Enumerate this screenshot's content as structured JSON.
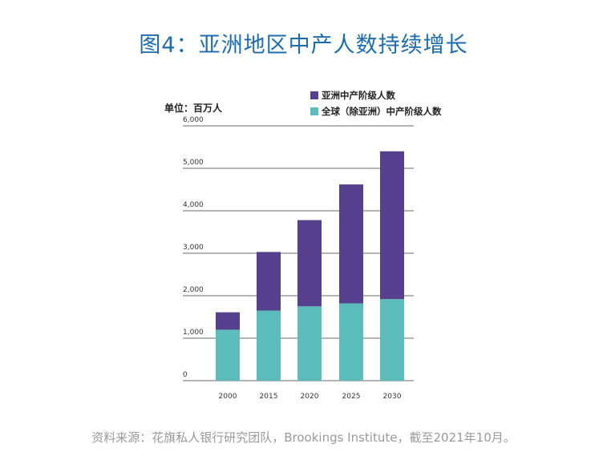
{
  "page": {
    "title": "图4：亚洲地区中产人数持续增长",
    "unit_label": "单位：百万人",
    "source": "资料来源：花旗私人银行研究团队，Brookings Institute，截至2021年10月。"
  },
  "chart_data": {
    "type": "bar",
    "stacked": true,
    "title": "图4：亚洲地区中产人数持续增长",
    "ylabel": "单位：百万人",
    "xlabel": "",
    "categories": [
      "2000",
      "2015",
      "2020",
      "2025",
      "2030"
    ],
    "series": [
      {
        "name": "全球（除亚洲）中产阶级人数",
        "values": [
          1200,
          1650,
          1750,
          1820,
          1920
        ],
        "color": "#5bbcbb"
      },
      {
        "name": "亚洲中产阶级人数",
        "values": [
          410,
          1380,
          2030,
          2800,
          3480
        ],
        "color": "#563f8d"
      }
    ],
    "ylim": [
      0,
      6000
    ],
    "yticks": [
      "0",
      "1,000",
      "2,000",
      "3,000",
      "4,000",
      "5,000",
      "6,000"
    ],
    "grid": true,
    "legend_position": "top-right"
  }
}
